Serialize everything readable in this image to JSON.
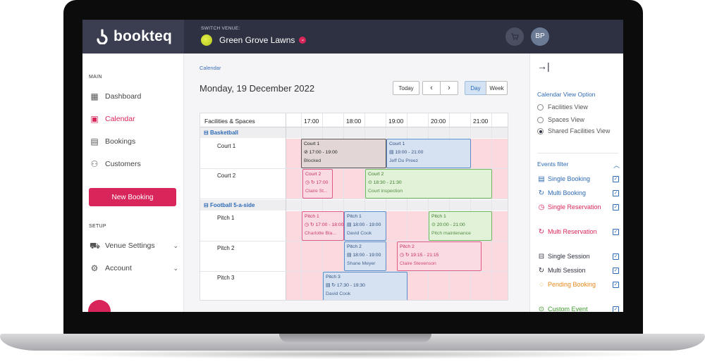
{
  "app": {
    "logo_text": "bookteq"
  },
  "header": {
    "switch_venue_label": "SWITCH VENUE:",
    "venue_name": "Green Grove Lawns",
    "avatar_initials": "BP"
  },
  "sidebar": {
    "main_label": "MAIN",
    "items": [
      {
        "label": "Dashboard",
        "icon": "dashboard-icon"
      },
      {
        "label": "Calendar",
        "icon": "calendar-icon"
      },
      {
        "label": "Bookings",
        "icon": "bookings-icon"
      },
      {
        "label": "Customers",
        "icon": "customers-icon"
      }
    ],
    "new_booking_label": "New Booking",
    "setup_label": "SETUP",
    "setup_items": [
      {
        "label": "Venue Settings",
        "icon": "venue-settings-icon"
      },
      {
        "label": "Account",
        "icon": "account-icon"
      }
    ]
  },
  "main": {
    "breadcrumb": "Calendar",
    "date_title": "Monday, 19 December 2022",
    "today_label": "Today",
    "prev_label": "‹",
    "next_label": "›",
    "view_day": "Day",
    "view_week": "Week"
  },
  "calendar": {
    "resource_header": "Facilities & Spaces",
    "hours": [
      "17:00",
      "18:00",
      "19:00",
      "20:00",
      "21:00"
    ],
    "groups": [
      {
        "label": "Basketball",
        "rows": [
          "Court 1",
          "Court 2"
        ]
      },
      {
        "label": "Football 5-a-side",
        "rows": [
          "Pitch 1",
          "Pitch 2",
          "Pitch 3"
        ]
      }
    ],
    "events": [
      {
        "facility": "Court 1",
        "time": "17:00 - 19:00",
        "name": "Blocked",
        "kind": "gray",
        "icon": "⊘"
      },
      {
        "facility": "Court 1",
        "time": "19:00 - 21:00",
        "name": "Jeff Du Preez",
        "kind": "blue",
        "icon": "▤"
      },
      {
        "facility": "Court 2",
        "time": "17:00",
        "name": "Claire St...",
        "kind": "pink",
        "icon": "◷ ↻"
      },
      {
        "facility": "Court 2",
        "time": "18:30 - 21:30",
        "name": "Court inspection",
        "kind": "green",
        "icon": "⊙"
      },
      {
        "facility": "Pitch 1",
        "time": "17:00 - 18:00",
        "name": "Charlotte Bla...",
        "kind": "pink",
        "icon": "◷ ↻"
      },
      {
        "facility": "Pitch 1",
        "time": "18:00 - 19:00",
        "name": "David Cook",
        "kind": "blue",
        "icon": "▤"
      },
      {
        "facility": "Pitch 1",
        "time": "20:00 - 21:00",
        "name": "Pitch maintenance",
        "kind": "green",
        "icon": "⊙"
      },
      {
        "facility": "Pitch 2",
        "time": "18:00 - 19:00",
        "name": "Shane Meyer",
        "kind": "blue",
        "icon": "▤"
      },
      {
        "facility": "Pitch 2",
        "time": "19:15 - 21:15",
        "name": "Claire Stevenson",
        "kind": "pink",
        "icon": "◷ ↻"
      },
      {
        "facility": "Pitch 3",
        "time": "17:30 - 19:30",
        "name": "David Cook",
        "kind": "blue",
        "icon": "▤ ↻"
      }
    ]
  },
  "right_panel": {
    "view_option_title": "Calendar View Option",
    "view_options": [
      "Facilities View",
      "Spaces View",
      "Shared Facilities View"
    ],
    "selected_view": "Shared Facilities View",
    "events_filter_title": "Events filter",
    "filters": [
      {
        "label": "Single Booking",
        "icon": "▤",
        "color": "#2f6bb5",
        "checked": true
      },
      {
        "label": "Multi Booking",
        "icon": "↻",
        "color": "#2f6bb5",
        "checked": true
      },
      {
        "label": "Single Reservation",
        "icon": "◷",
        "color": "#d9265a",
        "checked": true
      },
      {
        "label": "Multi Reservation",
        "icon": "↻",
        "color": "#d9265a",
        "checked": true
      },
      {
        "label": "Single Session",
        "icon": "⊟",
        "color": "#2e3142",
        "checked": true
      },
      {
        "label": "Multi Session",
        "icon": "↻",
        "color": "#2e3142",
        "checked": true
      },
      {
        "label": "Pending Booking",
        "icon": "◌",
        "color": "#e8891c",
        "checked": true
      },
      {
        "label": "Custom Event",
        "icon": "⊙",
        "color": "#3c9a2b",
        "checked": true
      }
    ]
  },
  "colors": {
    "brand": "#d9265a",
    "topbar": "#2e3142",
    "link": "#2f6bb5"
  }
}
